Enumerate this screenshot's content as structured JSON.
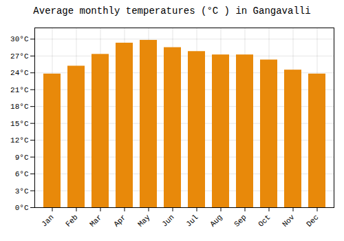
{
  "chart_data": {
    "type": "bar",
    "title": "Average monthly temperatures (°C ) in Gangavalli",
    "categories": [
      "Jan",
      "Feb",
      "Mar",
      "Apr",
      "May",
      "Jun",
      "Jul",
      "Aug",
      "Sep",
      "Oct",
      "Nov",
      "Dec"
    ],
    "values": [
      23.8,
      25.2,
      27.3,
      29.3,
      29.8,
      28.5,
      27.8,
      27.2,
      27.2,
      26.3,
      24.5,
      23.8
    ],
    "color": "#E8890A",
    "ylim": [
      0,
      32
    ],
    "yticks": [
      {
        "value": 0,
        "label": "0°C"
      },
      {
        "value": 3,
        "label": "3°C"
      },
      {
        "value": 6,
        "label": "6°C"
      },
      {
        "value": 9,
        "label": "9°C"
      },
      {
        "value": 12,
        "label": "12°C"
      },
      {
        "value": 15,
        "label": "15°C"
      },
      {
        "value": 18,
        "label": "18°C"
      },
      {
        "value": 21,
        "label": "21°C"
      },
      {
        "value": 24,
        "label": "24°C"
      },
      {
        "value": 27,
        "label": "27°C"
      },
      {
        "value": 30,
        "label": "30°C"
      }
    ],
    "grid": true
  }
}
